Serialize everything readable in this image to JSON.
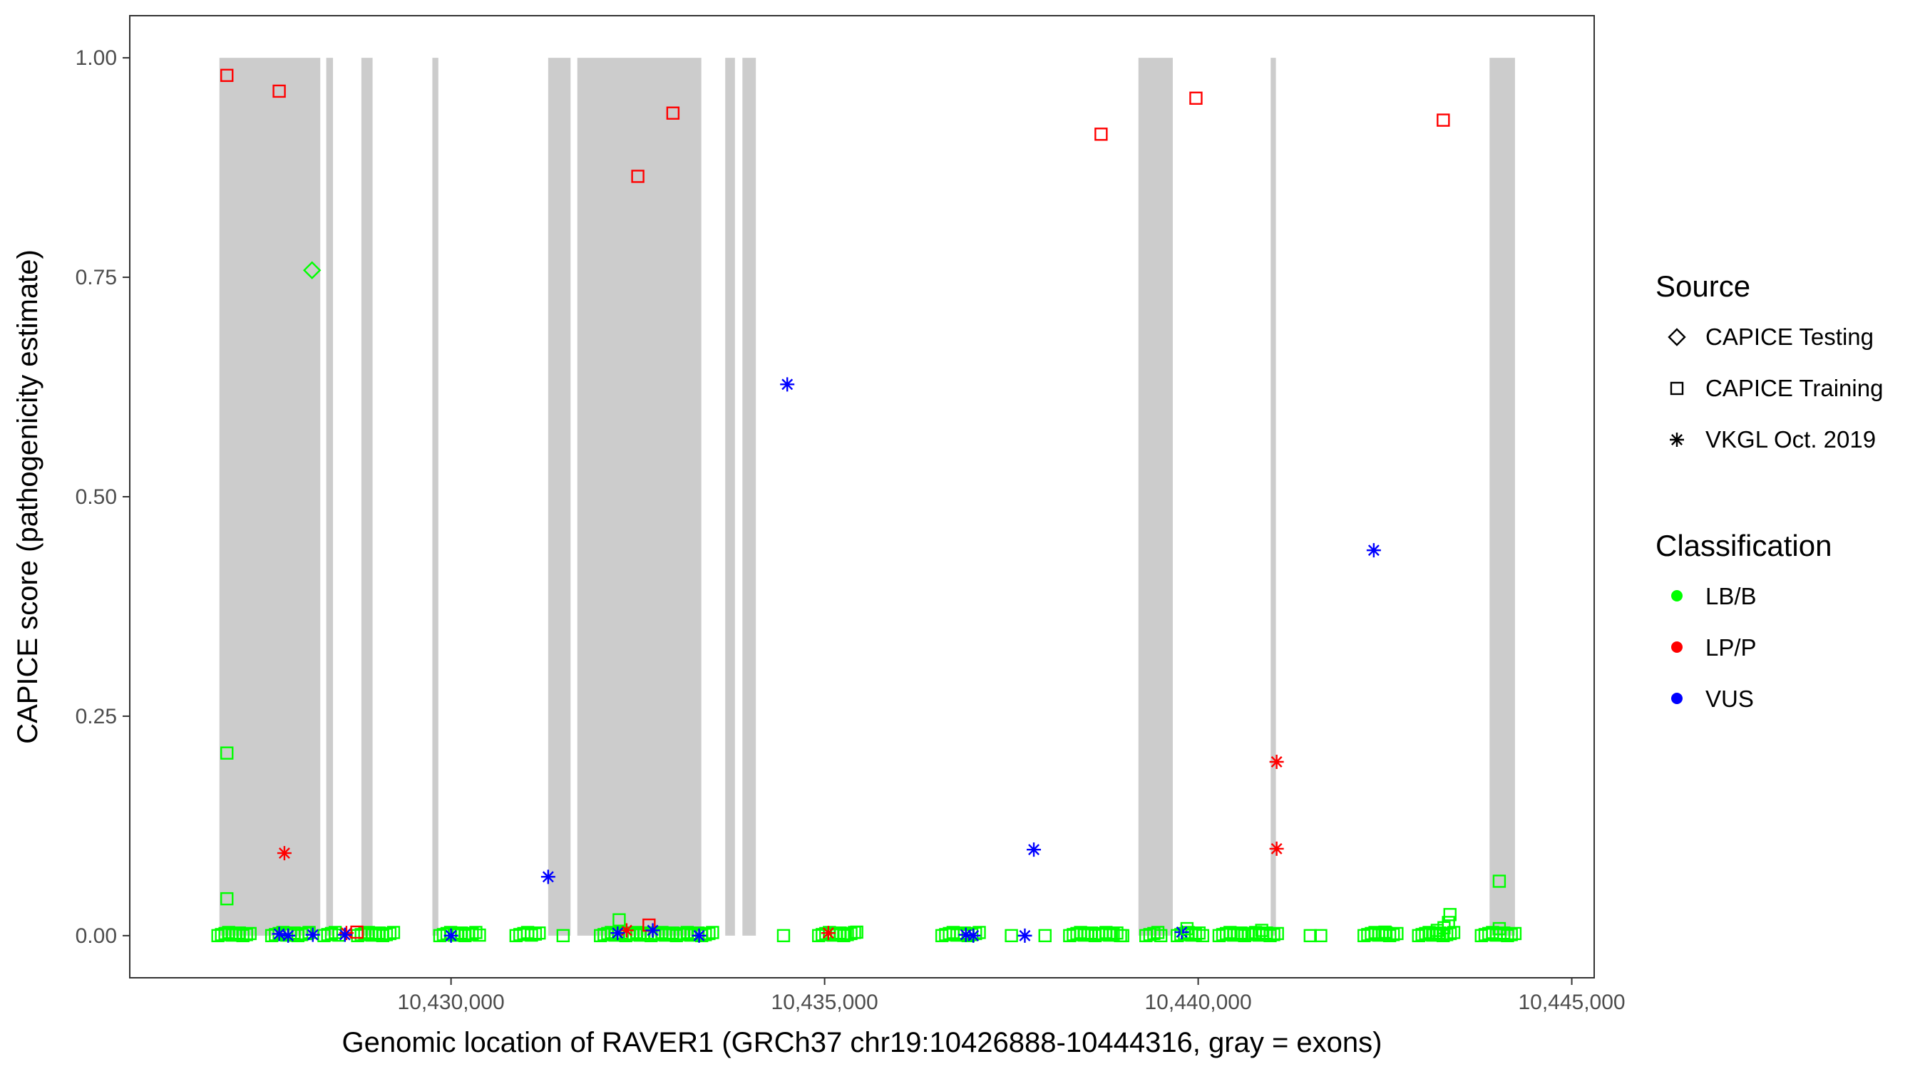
{
  "chart_data": {
    "type": "scatter",
    "xlabel": "Genomic location of RAVER1 (GRCh37 chr19:10426888-10444316, gray = exons)",
    "ylabel": "CAPICE score (pathogenicity estimate)",
    "xlim": [
      10425700,
      10445300
    ],
    "ylim": [
      -0.048,
      1.048
    ],
    "x_ticks": [
      10430000,
      10435000,
      10440000,
      10445000
    ],
    "x_tick_labels": [
      "10,430,000",
      "10,435,000",
      "10,440,000",
      "10,445,000"
    ],
    "y_ticks": [
      0,
      0.25,
      0.5,
      0.75,
      1.0
    ],
    "y_tick_labels": [
      "0.00",
      "0.25",
      "0.50",
      "0.75",
      "1.00"
    ],
    "exons": [
      [
        10426900,
        10428250
      ],
      [
        10428330,
        10428420
      ],
      [
        10428800,
        10428950
      ],
      [
        10429750,
        10429830
      ],
      [
        10431300,
        10431600
      ],
      [
        10431690,
        10433350
      ],
      [
        10433670,
        10433800
      ],
      [
        10433900,
        10434080
      ],
      [
        10439200,
        10439660
      ],
      [
        10440970,
        10441040
      ],
      [
        10443900,
        10444240
      ]
    ],
    "exon_color": "#cccccc",
    "grid": false,
    "legend": {
      "position": "right",
      "source": {
        "title": "Source",
        "entries": [
          {
            "label": "CAPICE Testing",
            "shape": "diamond"
          },
          {
            "label": "CAPICE Training",
            "shape": "square"
          },
          {
            "label": "VKGL Oct. 2019",
            "shape": "asterisk"
          }
        ]
      },
      "classification": {
        "title": "Classification",
        "entries": [
          {
            "label": "LB/B",
            "color": "#00ff00"
          },
          {
            "label": "LP/P",
            "color": "#ff0000"
          },
          {
            "label": "VUS",
            "color": "#0000ff"
          }
        ]
      }
    },
    "series": [
      {
        "classification": "LP/P",
        "source": "CAPICE Training",
        "shape": "square",
        "color": "#ff0000",
        "points": [
          [
            10427000,
            0.98
          ],
          [
            10427700,
            0.962
          ],
          [
            10432500,
            0.865
          ],
          [
            10432970,
            0.937
          ],
          [
            10438700,
            0.913
          ],
          [
            10439970,
            0.954
          ],
          [
            10443280,
            0.929
          ],
          [
            10428740,
            0.004
          ],
          [
            10432650,
            0.012
          ]
        ]
      },
      {
        "classification": "LP/P",
        "source": "VKGL Oct. 2019",
        "shape": "asterisk",
        "color": "#ff0000",
        "points": [
          [
            10427770,
            0.094
          ],
          [
            10441050,
            0.198
          ],
          [
            10441050,
            0.099
          ],
          [
            10428600,
            0.003
          ],
          [
            10432350,
            0.006
          ],
          [
            10435050,
            0.003
          ]
        ]
      },
      {
        "classification": "VUS",
        "source": "VKGL Oct. 2019",
        "shape": "asterisk",
        "color": "#0000ff",
        "points": [
          [
            10434500,
            0.628
          ],
          [
            10442350,
            0.439
          ],
          [
            10431300,
            0.067
          ],
          [
            10437800,
            0.098
          ],
          [
            10427700,
            0.002
          ],
          [
            10427820,
            0.0
          ],
          [
            10428150,
            0.001
          ],
          [
            10428580,
            0.001
          ],
          [
            10430000,
            0.0
          ],
          [
            10432230,
            0.003
          ],
          [
            10432700,
            0.006
          ],
          [
            10433320,
            0.0
          ],
          [
            10436890,
            0.001
          ],
          [
            10436990,
            0.0
          ],
          [
            10437680,
            0.0
          ],
          [
            10439780,
            0.004
          ]
        ]
      },
      {
        "classification": "LB/B",
        "source": "CAPICE Testing",
        "shape": "diamond",
        "color": "#00ff00",
        "points": [
          [
            10428140,
            0.758
          ]
        ]
      },
      {
        "classification": "LB/B",
        "source": "CAPICE Training",
        "shape": "square",
        "color": "#00ff00",
        "points": [
          [
            10427000,
            0.208
          ],
          [
            10427000,
            0.042
          ],
          [
            10432250,
            0.018
          ],
          [
            10443370,
            0.024
          ],
          [
            10443350,
            0.015
          ],
          [
            10444030,
            0.062
          ],
          [
            10444030,
            0.008
          ],
          [
            10434450,
            0.0
          ],
          [
            10431500,
            0.0
          ],
          [
            10435430,
            0.004
          ],
          [
            10437500,
            0.0
          ],
          [
            10437950,
            0.0
          ],
          [
            10438990,
            0.0
          ],
          [
            10439500,
            0.0
          ],
          [
            10439850,
            0.008
          ],
          [
            10440590,
            0.002
          ],
          [
            10440850,
            0.006
          ],
          [
            10441500,
            0.0
          ],
          [
            10441640,
            0.0
          ],
          [
            10443200,
            0.006
          ],
          [
            10443290,
            0.009
          ],
          [
            10442500,
            0.004
          ]
        ]
      },
      {
        "classification": "LB/B",
        "source": "CAPICE Training",
        "shape": "square-dense",
        "color": "#00ff00",
        "ranges": [
          [
            10426880,
            10427310
          ],
          [
            10427600,
            10428100
          ],
          [
            10428300,
            10428500
          ],
          [
            10428750,
            10429230
          ],
          [
            10429850,
            10430380
          ],
          [
            10430870,
            10431180
          ],
          [
            10432000,
            10433500
          ],
          [
            10434920,
            10435400
          ],
          [
            10436570,
            10437070
          ],
          [
            10438280,
            10438960
          ],
          [
            10439300,
            10439460
          ],
          [
            10439720,
            10440060
          ],
          [
            10440280,
            10441060
          ],
          [
            10442220,
            10442660
          ],
          [
            10442950,
            10443420
          ],
          [
            10443790,
            10444240
          ]
        ]
      }
    ]
  }
}
